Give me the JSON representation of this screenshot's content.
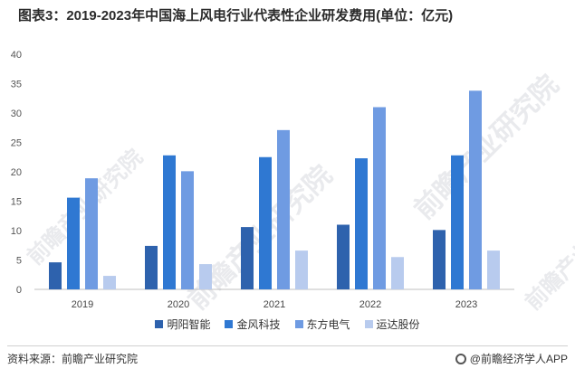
{
  "title": "图表3：2019-2023年中国海上风电行业代表性企业研发费用(单位：亿元)",
  "chart_data": {
    "type": "bar",
    "title": "图表3：2019-2023年中国海上风电行业代表性企业研发费用(单位：亿元)",
    "categories": [
      "2019",
      "2020",
      "2021",
      "2022",
      "2023"
    ],
    "yticks": [
      "0",
      "5",
      "10",
      "15",
      "20",
      "25",
      "30",
      "35",
      "40"
    ],
    "ylim": [
      0,
      40
    ],
    "xlabel": "",
    "ylabel": "",
    "legend_position": "bottom",
    "series": [
      {
        "name": "明阳智能",
        "color": "#2e62ad",
        "values": [
          4.6,
          7.4,
          10.6,
          11.0,
          10.1
        ]
      },
      {
        "name": "金风科技",
        "color": "#2f78d2",
        "values": [
          15.6,
          22.8,
          22.5,
          22.3,
          22.8
        ]
      },
      {
        "name": "东方电气",
        "color": "#6f9be2",
        "values": [
          18.9,
          20.1,
          27.1,
          31.0,
          33.8
        ]
      },
      {
        "name": "运达股份",
        "color": "#b8cbee",
        "values": [
          2.3,
          4.3,
          6.6,
          5.5,
          6.6
        ]
      }
    ]
  },
  "watermark": {
    "brand": "前瞻产业研究院"
  },
  "footer": {
    "source": "资料来源：前瞻产业研究院",
    "brand": "@前瞻经济学人APP"
  }
}
